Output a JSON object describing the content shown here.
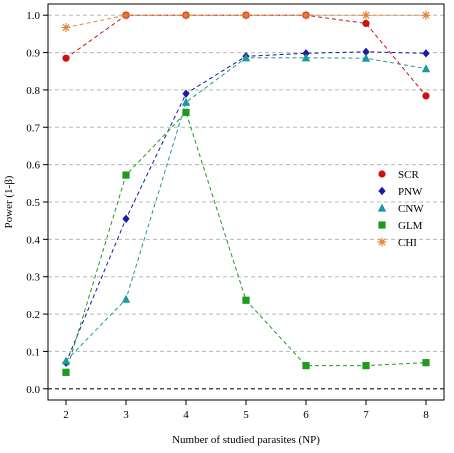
{
  "chart_data": {
    "type": "scatter",
    "xlabel": "Number of studied parasites (NP)",
    "ylabel": "Power (1-β)",
    "xlim": [
      1.7,
      8.3
    ],
    "ylim": [
      -0.03,
      1.03
    ],
    "x_ticks": [
      2,
      3,
      4,
      5,
      6,
      7,
      8
    ],
    "x_tick_labels": [
      "2",
      "3",
      "4",
      "5",
      "6",
      "7",
      "8"
    ],
    "y_ticks": [
      0.0,
      0.1,
      0.2,
      0.3,
      0.4,
      0.5,
      0.6,
      0.7,
      0.8,
      0.9,
      1.0
    ],
    "y_tick_labels": [
      "0.0",
      "0.1",
      "0.2",
      "0.3",
      "0.4",
      "0.5",
      "0.6",
      "0.7",
      "0.8",
      "0.9",
      "1.0"
    ],
    "grid": "horizontal dashed",
    "reference_line": 0.0,
    "legend_position": "right",
    "x": [
      2,
      3,
      4,
      5,
      6,
      7,
      8
    ],
    "series": [
      {
        "name": "SCR",
        "color": "#cc1111",
        "marker": "circle",
        "values": [
          0.885,
          1.0,
          1.0,
          1.0,
          1.0,
          0.978,
          0.784
        ]
      },
      {
        "name": "PNW",
        "color": "#1a1aa6",
        "marker": "diamond",
        "values": [
          0.07,
          0.455,
          0.79,
          0.89,
          0.898,
          0.902,
          0.898
        ]
      },
      {
        "name": "CNW",
        "color": "#1a9a9a",
        "marker": "triangle",
        "values": [
          0.075,
          0.24,
          0.767,
          0.886,
          0.886,
          0.885,
          0.857
        ]
      },
      {
        "name": "GLM",
        "color": "#1e9a1e",
        "marker": "square",
        "values": [
          0.044,
          0.572,
          0.74,
          0.237,
          0.062,
          0.062,
          0.07
        ]
      },
      {
        "name": "CHI",
        "color": "#e0853a",
        "marker": "asterisk",
        "values": [
          0.967,
          1.0,
          1.0,
          1.0,
          1.0,
          1.0,
          1.0
        ]
      }
    ]
  }
}
